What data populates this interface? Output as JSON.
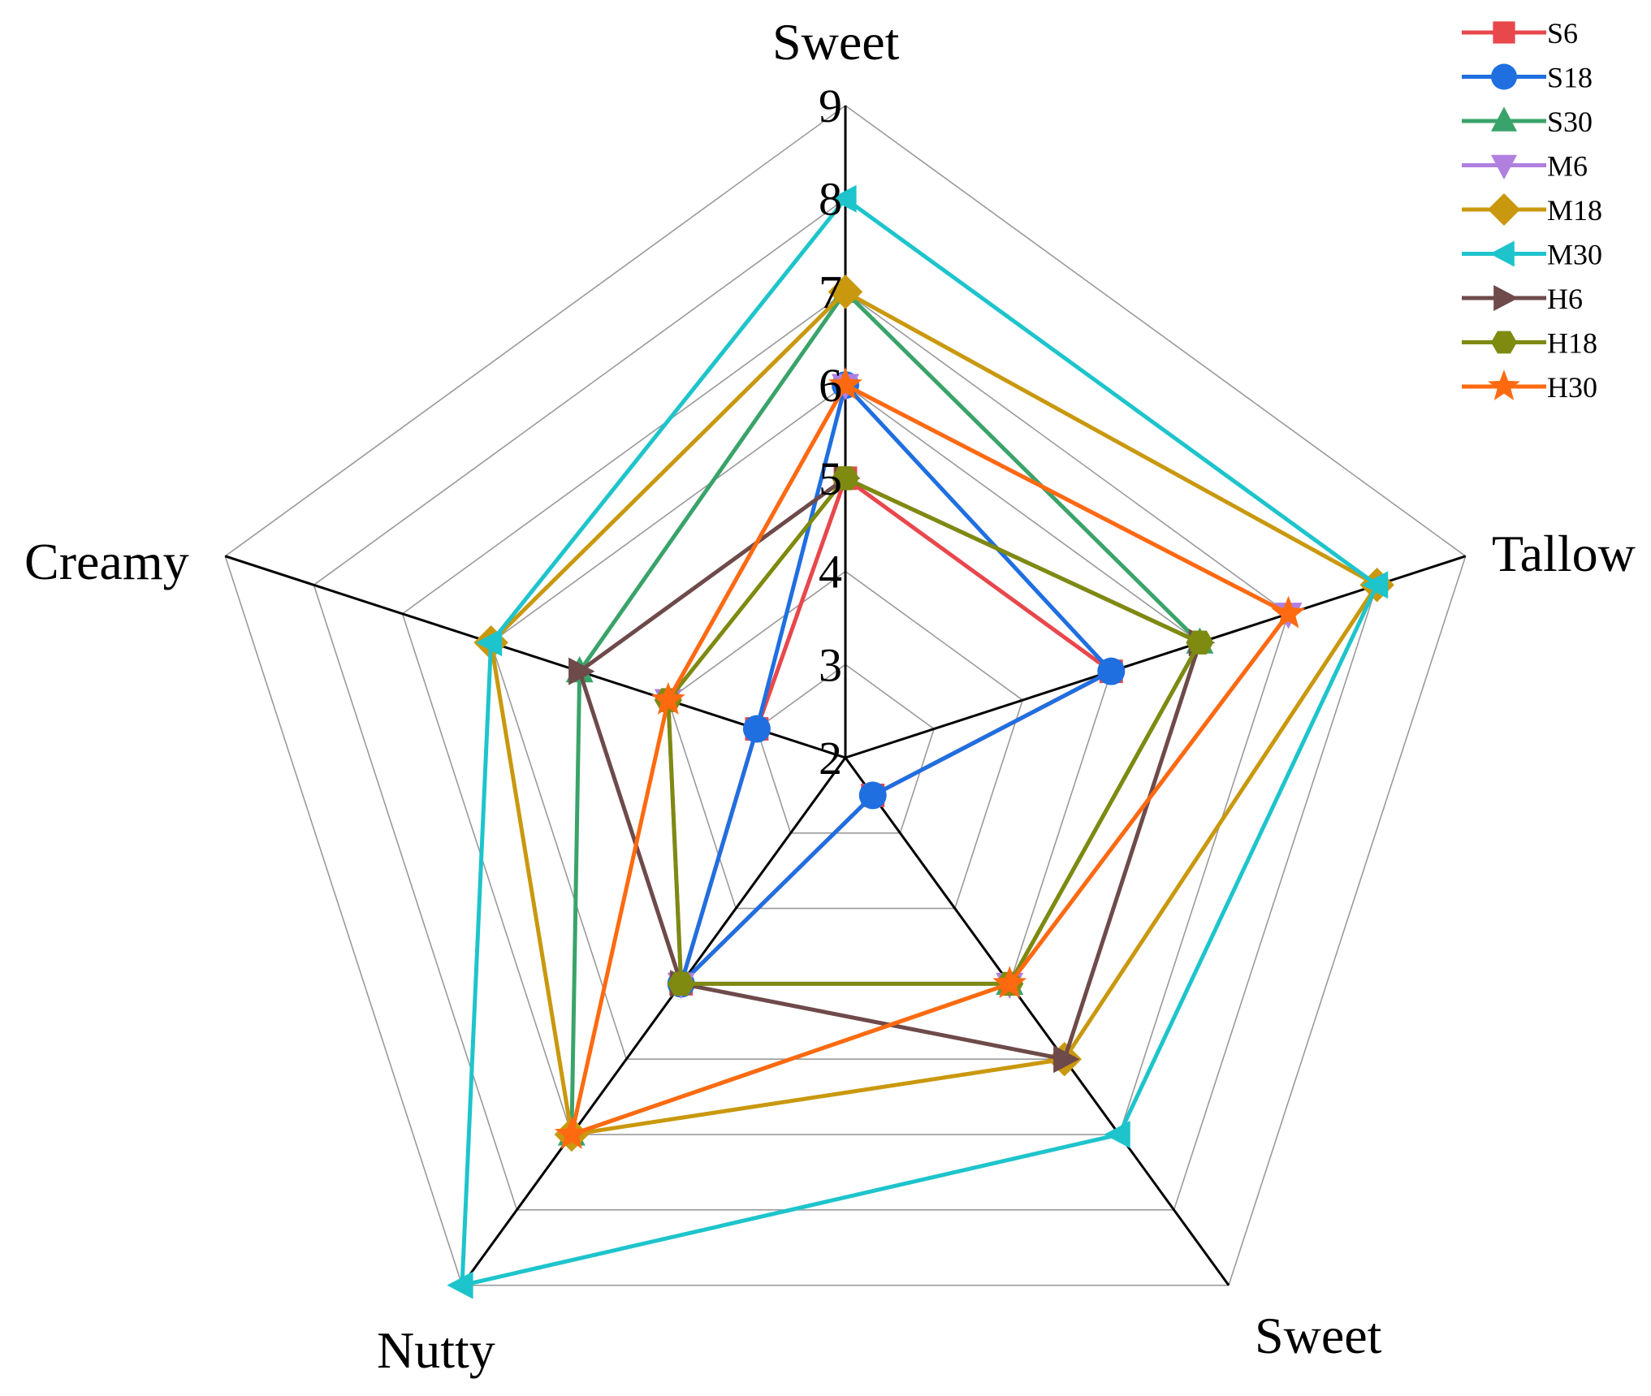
{
  "chart_data": {
    "type": "radar",
    "axes": [
      "Sweet",
      "Tallow",
      "Sweet",
      "Nutty",
      "Creamy"
    ],
    "rlim": [
      2,
      9
    ],
    "ticks": [
      "2",
      "3",
      "4",
      "5",
      "6",
      "7",
      "8",
      "9"
    ],
    "grid": true,
    "legend_position": "top-right",
    "series": [
      {
        "name": "S6",
        "color": "#e8474c",
        "marker": "square",
        "values": [
          5,
          5,
          2.5,
          5,
          3
        ]
      },
      {
        "name": "S18",
        "color": "#1f6fe0",
        "marker": "circle",
        "values": [
          6,
          5,
          2.5,
          5,
          3
        ]
      },
      {
        "name": "S30",
        "color": "#3aa36a",
        "marker": "triangle-up",
        "values": [
          7,
          6,
          5,
          7,
          5
        ]
      },
      {
        "name": "M6",
        "color": "#b07fe0",
        "marker": "triangle-down",
        "values": [
          6,
          7,
          5,
          5,
          4
        ]
      },
      {
        "name": "M18",
        "color": "#c9980e",
        "marker": "diamond",
        "values": [
          7,
          8,
          6,
          7,
          6
        ]
      },
      {
        "name": "M30",
        "color": "#1ec4cc",
        "marker": "triangle-left",
        "values": [
          8,
          8,
          7,
          9,
          6
        ]
      },
      {
        "name": "H6",
        "color": "#6e4a4a",
        "marker": "triangle-right",
        "values": [
          5,
          6,
          6,
          5,
          5
        ]
      },
      {
        "name": "H18",
        "color": "#7e8a10",
        "marker": "hexagon",
        "values": [
          5,
          6,
          5,
          5,
          4
        ]
      },
      {
        "name": "H30",
        "color": "#ff6a10",
        "marker": "star",
        "values": [
          6,
          7,
          5,
          7,
          4
        ]
      }
    ]
  }
}
